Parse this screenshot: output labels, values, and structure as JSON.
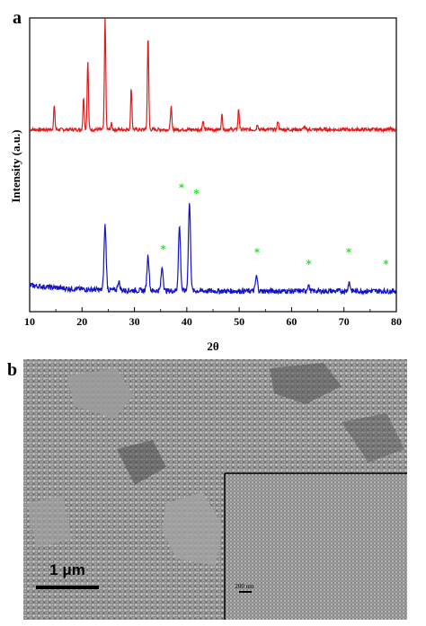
{
  "panels": {
    "a": {
      "label": "a"
    },
    "b": {
      "label": "b",
      "scale_bar": "1 μm",
      "inset_scale_bar": "200 nm"
    }
  },
  "chart_data": {
    "type": "line",
    "xlabel": "2θ",
    "ylabel": "Intensity (a.u.)",
    "xlim": [
      10,
      80
    ],
    "xticks": [
      10,
      20,
      30,
      40,
      50,
      60,
      70,
      80
    ],
    "grid": false,
    "colors": {
      "red_trace": "#e21a1a",
      "blue_trace": "#1212c8",
      "star": "#2ee82e"
    },
    "series": [
      {
        "color": "#e21a1a",
        "baseline": 0.62,
        "peaks": [
          {
            "x": 14.7,
            "y": 0.7
          },
          {
            "x": 20.3,
            "y": 0.73
          },
          {
            "x": 21.1,
            "y": 0.85
          },
          {
            "x": 24.4,
            "y": 1.0
          },
          {
            "x": 25.6,
            "y": 0.64
          },
          {
            "x": 29.4,
            "y": 0.76
          },
          {
            "x": 32.6,
            "y": 0.94
          },
          {
            "x": 37.0,
            "y": 0.7
          },
          {
            "x": 43.1,
            "y": 0.65
          },
          {
            "x": 46.7,
            "y": 0.67
          },
          {
            "x": 49.9,
            "y": 0.69
          },
          {
            "x": 53.5,
            "y": 0.64
          },
          {
            "x": 57.4,
            "y": 0.65
          },
          {
            "x": 62.4,
            "y": 0.63
          }
        ]
      },
      {
        "color": "#1212c8",
        "baseline": 0.07,
        "peaks": [
          {
            "x": 24.4,
            "y": 0.29
          },
          {
            "x": 27.0,
            "y": 0.1
          },
          {
            "x": 32.6,
            "y": 0.19
          },
          {
            "x": 35.3,
            "y": 0.15
          },
          {
            "x": 38.6,
            "y": 0.29
          },
          {
            "x": 40.5,
            "y": 0.37
          },
          {
            "x": 53.3,
            "y": 0.12
          },
          {
            "x": 63.2,
            "y": 0.09
          },
          {
            "x": 71.0,
            "y": 0.1
          },
          {
            "x": 76.4,
            "y": 0.07
          }
        ]
      }
    ],
    "annotations": [
      {
        "text": "*",
        "x": 35.5,
        "y": 0.2
      },
      {
        "text": "*",
        "x": 39.0,
        "y": 0.41
      },
      {
        "text": "*",
        "x": 41.8,
        "y": 0.39
      },
      {
        "text": "*",
        "x": 53.4,
        "y": 0.19
      },
      {
        "text": "*",
        "x": 63.3,
        "y": 0.15
      },
      {
        "text": "*",
        "x": 70.9,
        "y": 0.19
      },
      {
        "text": "*",
        "x": 78.0,
        "y": 0.15
      }
    ]
  }
}
